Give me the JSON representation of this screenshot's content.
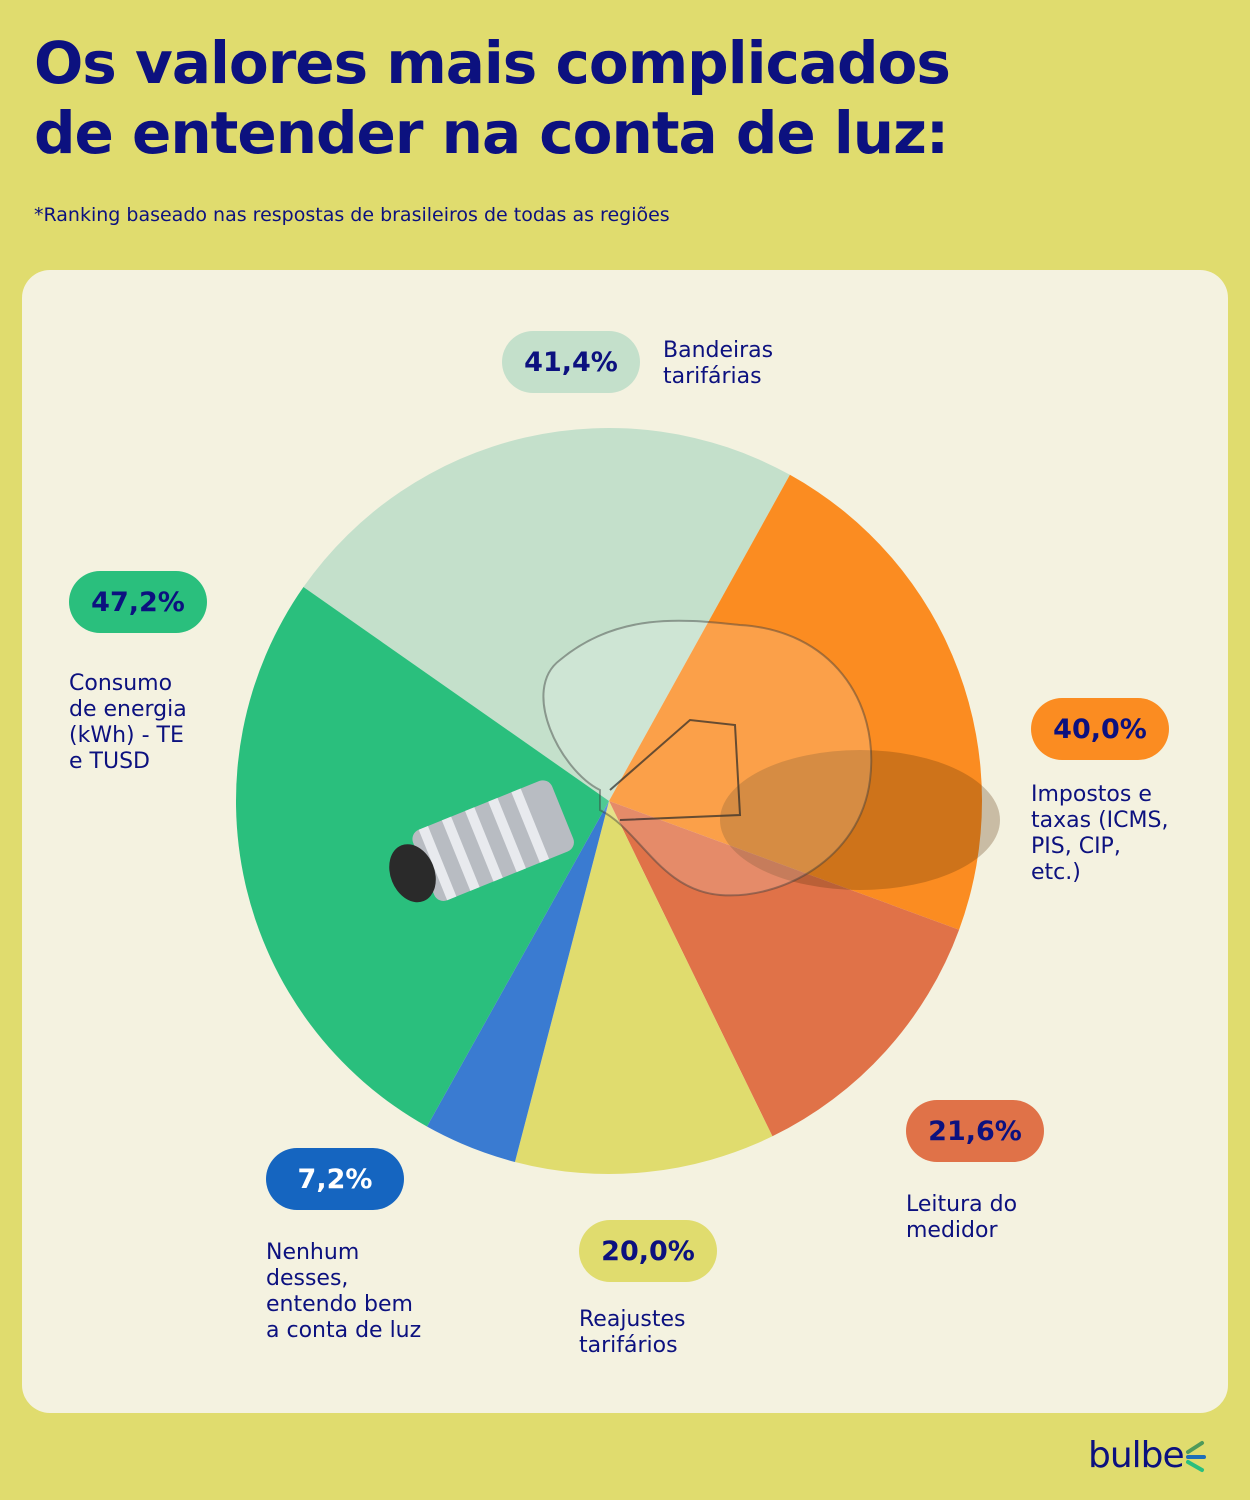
{
  "header": {
    "title_line1": "Os valores mais complicados",
    "title_line2": "de entender na conta de luz:",
    "subtitle": "*Ranking baseado nas respostas de brasileiros de todas as regiões"
  },
  "brand": {
    "logo_text": "bulbe"
  },
  "chart_data": {
    "type": "pie",
    "title": "Os valores mais complicados de entender na conta de luz:",
    "note": "*Ranking baseado nas respostas de brasileiros de todas as regiões",
    "unit": "%",
    "slices": [
      {
        "label": "Bandeiras tarifárias",
        "label_lines": "Bandeiras\ntarifárias",
        "value": 41.4,
        "display": "41,4%",
        "color": "#c4e0cb",
        "pill_text_color": "#0c117f"
      },
      {
        "label": "Impostos e taxas (ICMS, PIS, CIP, etc.)",
        "label_lines": "Impostos e\ntaxas (ICMS,\nPIS, CIP,\netc.)",
        "value": 40.0,
        "display": "40,0%",
        "color": "#fb8c21",
        "pill_text_color": "#0c117f"
      },
      {
        "label": "Leitura do medidor",
        "label_lines": "Leitura do\nmedidor",
        "value": 21.6,
        "display": "21,6%",
        "color": "#e07248",
        "pill_text_color": "#0c117f"
      },
      {
        "label": "Reajustes tarifários",
        "label_lines": "Reajustes\ntarifários",
        "value": 20.0,
        "display": "20,0%",
        "color": "#e0dc6e",
        "pill_text_color": "#0c117f"
      },
      {
        "label": "Nenhum desses, entendo bem a conta de luz",
        "label_lines": "Nenhum\ndesses,\nentendo bem\na conta de luz",
        "value": 7.2,
        "display": "7,2%",
        "color": "#3a7bd1",
        "pill_color": "#1565c0",
        "pill_text_color": "#ffffff"
      },
      {
        "label": "Consumo de energia (kWh) - TE e TUSD",
        "label_lines": "Consumo\nde energia\n(kWh) - TE\ne TUSD",
        "value": 47.2,
        "display": "47,2%",
        "color": "#2abf7d",
        "pill_text_color": "#0c117f"
      }
    ]
  }
}
